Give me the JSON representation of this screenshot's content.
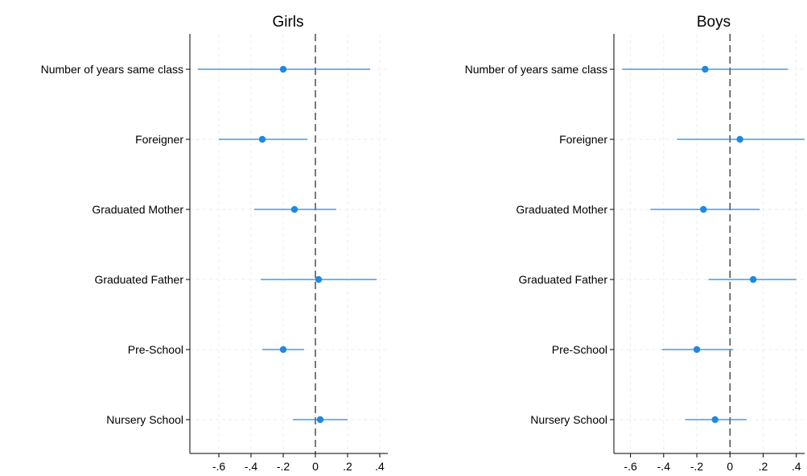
{
  "chart_data": [
    {
      "type": "coefficient_plot",
      "title": "Girls",
      "categories": [
        "Number of years same class",
        "Foreigner",
        "Graduated Mother",
        "Graduated Father",
        "Pre-School",
        "Nursery School"
      ],
      "estimate": [
        -0.2,
        -0.33,
        -0.13,
        0.02,
        -0.2,
        0.03
      ],
      "ci_low": [
        -0.73,
        -0.6,
        -0.38,
        -0.34,
        -0.33,
        -0.14
      ],
      "ci_high": [
        0.34,
        -0.05,
        0.13,
        0.38,
        -0.07,
        0.2
      ],
      "xlim": [
        -0.78,
        0.45
      ],
      "xticks": [
        -0.6,
        -0.4,
        -0.2,
        0,
        0.2,
        0.4
      ],
      "xtick_labels": [
        "-.6",
        "-.4",
        "-.2",
        "0",
        ".2",
        ".4"
      ],
      "reference_line": 0,
      "grid": true,
      "color": "#1e88e5"
    },
    {
      "type": "coefficient_plot",
      "title": "Boys",
      "categories": [
        "Number of years same class",
        "Foreigner",
        "Graduated Mother",
        "Graduated Father",
        "Pre-School",
        "Nursery School"
      ],
      "estimate": [
        -0.15,
        0.06,
        -0.16,
        0.14,
        -0.2,
        -0.09
      ],
      "ci_low": [
        -0.65,
        -0.32,
        -0.48,
        -0.13,
        -0.41,
        -0.27
      ],
      "ci_high": [
        0.35,
        0.45,
        0.18,
        0.4,
        0.02,
        0.1
      ],
      "xlim": [
        -0.7,
        0.45
      ],
      "xticks": [
        -0.6,
        -0.4,
        -0.2,
        0,
        0.2,
        0.4
      ],
      "xtick_labels": [
        "-.6",
        "-.4",
        "-.2",
        "0",
        ".2",
        ".4"
      ],
      "reference_line": 0,
      "grid": true,
      "color": "#1e88e5"
    }
  ]
}
